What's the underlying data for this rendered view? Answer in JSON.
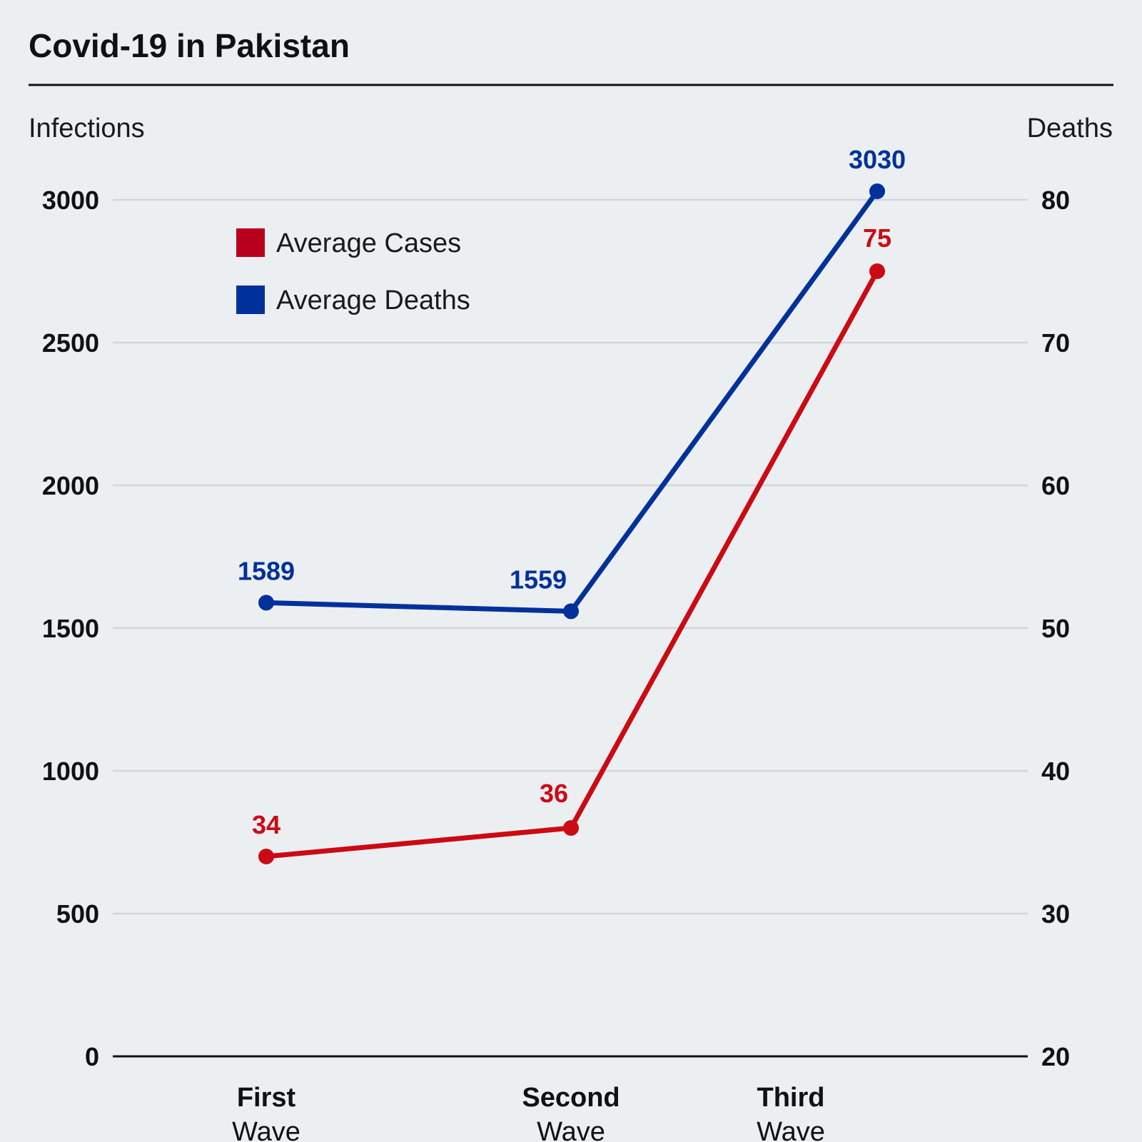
{
  "chart_data": {
    "type": "line",
    "title": "Covid-19 in Pakistan",
    "ylabel_left": "Infections",
    "ylabel_right": "Deaths",
    "categories": [
      {
        "main": "First",
        "sub": "Wave"
      },
      {
        "main": "Second",
        "sub": "Wave"
      },
      {
        "main": "Third",
        "sub": "Wave"
      }
    ],
    "left_axis": {
      "min": 0,
      "max": 3000,
      "ticks": [
        "0",
        "500",
        "1000",
        "1500",
        "2000",
        "2500",
        "3000"
      ]
    },
    "right_axis": {
      "min": 20,
      "max": 80,
      "ticks": [
        "20",
        "30",
        "40",
        "50",
        "60",
        "70",
        "80"
      ]
    },
    "grid": true,
    "legend_position": "top-left",
    "series": [
      {
        "name": "Average Cases",
        "color": "#cc0a14",
        "legend_color": "#b8001c",
        "axis": "right",
        "values": [
          34,
          36,
          75
        ],
        "labels": [
          "34",
          "36",
          "75"
        ]
      },
      {
        "name": "Average Deaths",
        "color": "#00319b",
        "legend_color": "#00319b",
        "axis": "left",
        "values": [
          1589,
          1559,
          3030
        ],
        "labels": [
          "1589",
          "1559",
          "3030"
        ]
      }
    ]
  }
}
